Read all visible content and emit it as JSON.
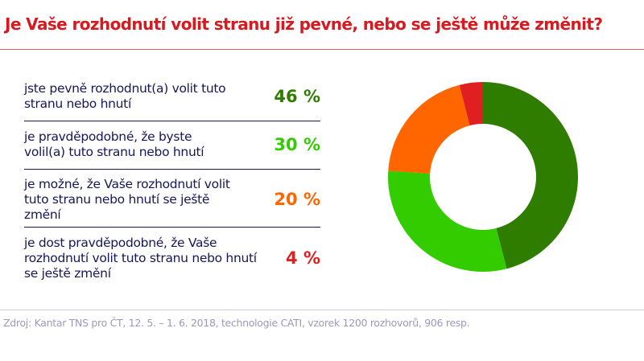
{
  "title": "Je Vaše rozhodnutí volit stranu již pevné, nebo se ještě může změnit?",
  "source": "Zdroj: Kantar TNS pro ČT, 12. 5. – 1. 6. 2018, technologie CATI, vzorek 1200 rozhovorů, 906 resp.",
  "chart_data": {
    "type": "pie",
    "donut": true,
    "categories": [
      "jste pevně rozhodnut(a) volit tuto stranu nebo hnutí",
      "je pravděpodobné, že byste volil(a) tuto stranu nebo hnutí",
      "je možné, že Vaše rozhodnutí volit tuto stranu nebo hnutí se ještě změní",
      "je dost pravděpodobné, že Vaše rozhodnutí volit tuto stranu nebo hnutí se ještě změní"
    ],
    "values": [
      46,
      30,
      20,
      4
    ],
    "labels": [
      "46 %",
      "30 %",
      "20 %",
      "4 %"
    ],
    "colors": [
      "#2e7d00",
      "#33cc00",
      "#ff6600",
      "#e02020"
    ],
    "legend": "left"
  }
}
